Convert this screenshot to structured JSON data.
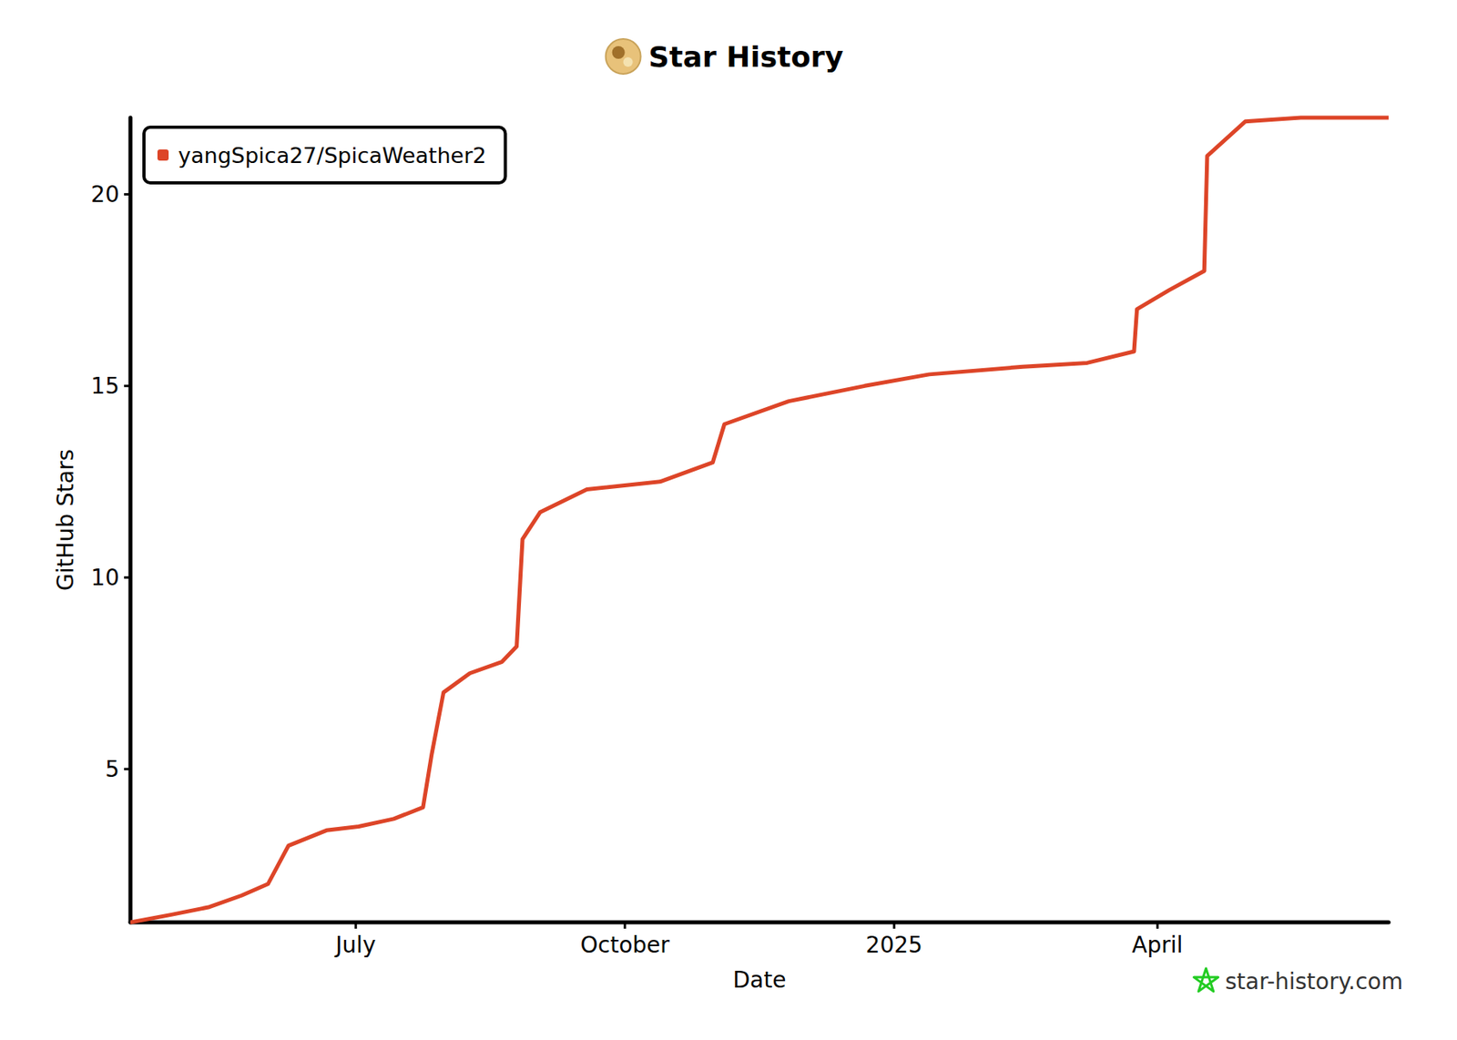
{
  "chart_data": {
    "type": "line",
    "title": "Star History",
    "x_label": "Date",
    "y_label": "GitHub Stars",
    "annotations": [
      "star-history.com"
    ],
    "x": [
      "2024-04-15",
      "2024-04-29",
      "2024-05-12",
      "2024-05-23",
      "2024-06-01",
      "2024-06-08",
      "2024-06-21",
      "2024-07-02",
      "2024-07-14",
      "2024-07-24",
      "2024-07-27",
      "2024-07-31",
      "2024-08-09",
      "2024-08-20",
      "2024-08-25",
      "2024-08-27",
      "2024-09-02",
      "2024-09-18",
      "2024-10-13",
      "2024-10-31",
      "2024-11-04",
      "2024-11-26",
      "2024-12-22",
      "2025-01-13",
      "2025-02-14",
      "2025-03-08",
      "2025-03-24",
      "2025-03-25",
      "2025-04-05",
      "2025-04-17",
      "2025-04-18",
      "2025-05-01",
      "2025-05-20",
      "2025-06-19"
    ],
    "series": [
      {
        "name": "yangSpica27/SpicaWeather2",
        "color": "#dd4528",
        "values": [
          1,
          1.2,
          1.4,
          1.7,
          2,
          3,
          3.4,
          3.5,
          3.7,
          4,
          5.4,
          7,
          7.5,
          7.8,
          8.2,
          11,
          11.7,
          12.3,
          12.5,
          13,
          14,
          14.6,
          15,
          15.3,
          15.5,
          15.6,
          15.9,
          17,
          17.5,
          18,
          21,
          21.9,
          22,
          22
        ]
      }
    ],
    "xlim": [
      "2024-04-15",
      "2025-06-19"
    ],
    "xticks": [
      {
        "value": "2024-07-01",
        "label": "July"
      },
      {
        "value": "2024-10-01",
        "label": "October"
      },
      {
        "value": "2025-01-01",
        "label": "2025"
      },
      {
        "value": "2025-04-01",
        "label": "April"
      }
    ],
    "ylim": [
      1,
      22
    ],
    "yticks": [
      5,
      10,
      15,
      20
    ],
    "grid": false,
    "legend": "top-left"
  }
}
